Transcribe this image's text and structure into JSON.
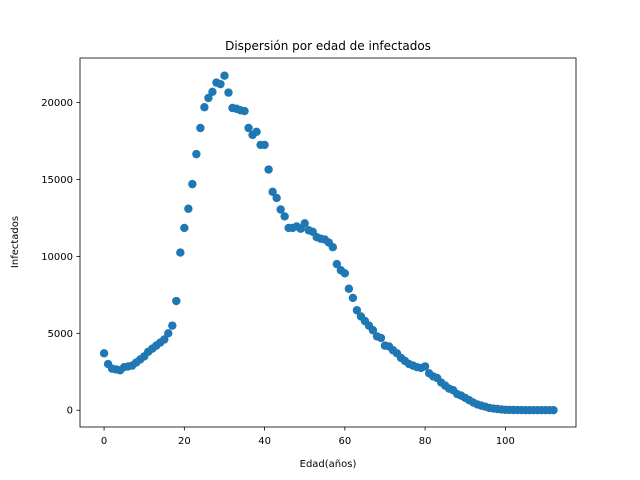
{
  "chart_data": {
    "type": "scatter",
    "title": "Dispersión por edad de infectados",
    "xlabel": "Edad(años)",
    "ylabel": "Infectados",
    "xlim": [
      -6,
      117.6
    ],
    "ylim": [
      -1090,
      22900
    ],
    "x_ticks": [
      0,
      20,
      40,
      60,
      80,
      100
    ],
    "y_ticks": [
      0,
      5000,
      10000,
      15000,
      20000
    ],
    "x_tick_labels": [
      "0",
      "20",
      "40",
      "60",
      "80",
      "100"
    ],
    "y_tick_labels": [
      "0",
      "5000",
      "10000",
      "15000",
      "20000"
    ],
    "grid": false,
    "marker_color": "#1f77b4",
    "series": [
      {
        "x": [
          0,
          1,
          2,
          3,
          4,
          5,
          6,
          7,
          8,
          9,
          10,
          11,
          12,
          13,
          14,
          15,
          16,
          17,
          18,
          19,
          20,
          21,
          22,
          23,
          24,
          25,
          26,
          27,
          28,
          29,
          30,
          31,
          32,
          33,
          34,
          35,
          36,
          37,
          38,
          39,
          40,
          41,
          42,
          43,
          44,
          45,
          46,
          47,
          48,
          49,
          50,
          51,
          52,
          53,
          54,
          55,
          56,
          57,
          58,
          59,
          60,
          61,
          62,
          63,
          64,
          65,
          66,
          67,
          68,
          69,
          70,
          71,
          72,
          73,
          74,
          75,
          76,
          77,
          78,
          79,
          80,
          81,
          82,
          83,
          84,
          85,
          86,
          87,
          88,
          89,
          90,
          91,
          92,
          93,
          94,
          95,
          96,
          97,
          98,
          99,
          100,
          101,
          102,
          103,
          104,
          105,
          106,
          107,
          108,
          109,
          110,
          111,
          112
        ],
        "y": [
          3700,
          3000,
          2700,
          2650,
          2600,
          2800,
          2850,
          2900,
          3100,
          3300,
          3500,
          3800,
          4000,
          4200,
          4400,
          4600,
          5000,
          5500,
          7100,
          10250,
          11850,
          13100,
          14700,
          16650,
          18350,
          19700,
          20300,
          20700,
          21300,
          21200,
          21750,
          20650,
          19650,
          19600,
          19500,
          19450,
          18350,
          17900,
          18100,
          17250,
          17250,
          15650,
          14200,
          13800,
          13050,
          12600,
          11850,
          11850,
          11950,
          11800,
          12150,
          11700,
          11600,
          11250,
          11150,
          11100,
          10900,
          10600,
          9500,
          9100,
          8900,
          7900,
          7300,
          6500,
          6100,
          5800,
          5500,
          5200,
          4800,
          4700,
          4200,
          4150,
          3900,
          3700,
          3400,
          3200,
          3000,
          2900,
          2800,
          2750,
          2850,
          2400,
          2200,
          2100,
          1800,
          1600,
          1400,
          1300,
          1050,
          950,
          800,
          650,
          500,
          380,
          300,
          230,
          150,
          110,
          80,
          50,
          30,
          20,
          15,
          10,
          10,
          5,
          5,
          5,
          5,
          5,
          5,
          5,
          5
        ]
      }
    ]
  }
}
